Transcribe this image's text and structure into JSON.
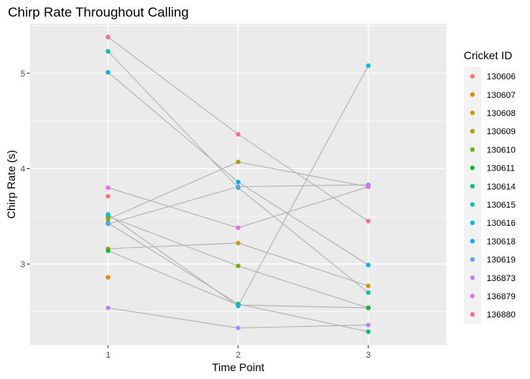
{
  "chart_data": {
    "type": "scatter",
    "title": "Chirp Rate Throughout Calling",
    "xlabel": "Time Point",
    "ylabel": "Chirp Rate (s)",
    "x_ticks": [
      "1",
      "2",
      "3"
    ],
    "y_ticks": [
      "3",
      "4",
      "5"
    ],
    "xlim": [
      0.4,
      3.6
    ],
    "ylim": [
      2.15,
      5.52
    ],
    "grid": true,
    "legend_position": "right",
    "legend_title": "Cricket ID",
    "connector_color": "#b3b3b3",
    "series": [
      {
        "name": "130606",
        "color": "#F8766D",
        "x": [
          1
        ],
        "y": [
          3.71
        ]
      },
      {
        "name": "130607",
        "color": "#E58700",
        "x": [
          1
        ],
        "y": [
          2.86
        ]
      },
      {
        "name": "130608",
        "color": "#C99800",
        "x": [
          1,
          2,
          3
        ],
        "y": [
          3.16,
          3.22,
          2.77
        ]
      },
      {
        "name": "130609",
        "color": "#A3A500",
        "x": [
          1,
          2,
          3
        ],
        "y": [
          3.47,
          4.07,
          3.81
        ]
      },
      {
        "name": "130610",
        "color": "#6BB100",
        "x": [
          1,
          2,
          3
        ],
        "y": [
          3.5,
          2.98,
          2.54
        ]
      },
      {
        "name": "130611",
        "color": "#00BA38",
        "x": [
          1,
          2,
          3
        ],
        "y": [
          3.14,
          2.57,
          2.54
        ]
      },
      {
        "name": "130614",
        "color": "#00BF7D",
        "x": [
          1,
          2,
          3
        ],
        "y": [
          3.43,
          2.58,
          2.29
        ]
      },
      {
        "name": "130615",
        "color": "#00C0AF",
        "x": [
          1,
          2,
          3
        ],
        "y": [
          5.23,
          3.8,
          2.7
        ]
      },
      {
        "name": "130616",
        "color": "#00BCD8",
        "x": [
          1,
          2,
          3
        ],
        "y": [
          3.52,
          2.56,
          5.08
        ]
      },
      {
        "name": "130618",
        "color": "#00B0F6",
        "x": [
          1,
          2,
          3
        ],
        "y": [
          5.01,
          3.86,
          2.99
        ]
      },
      {
        "name": "130619",
        "color": "#619CFF",
        "x": [
          1,
          2,
          3
        ],
        "y": [
          3.42,
          3.81,
          3.83
        ]
      },
      {
        "name": "136873",
        "color": "#B983FF",
        "x": [
          1,
          2,
          3
        ],
        "y": [
          2.54,
          2.33,
          2.36
        ]
      },
      {
        "name": "136879",
        "color": "#E76BF3",
        "x": [
          1,
          2,
          3
        ],
        "y": [
          3.8,
          3.38,
          3.81
        ]
      },
      {
        "name": "136880",
        "color": "#FF67A4",
        "x": [
          1,
          2,
          3
        ],
        "y": [
          5.38,
          4.36,
          3.45
        ]
      }
    ]
  }
}
